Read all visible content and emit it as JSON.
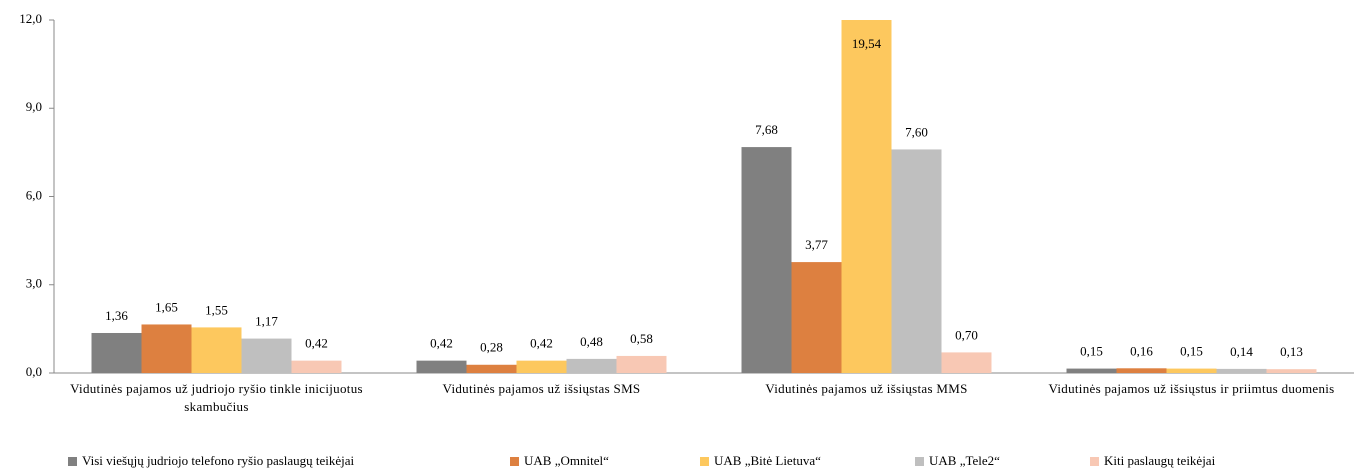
{
  "chart_data": {
    "type": "bar",
    "categories": [
      "Vidutinės pajamos už judriojo ryšio tinkle inicijuotus skambučius",
      "Vidutinės pajamos už išsiųstas SMS",
      "Vidutinės pajamos už išsiųstas MMS",
      "Vidutinės pajamos už išsiųstus ir priimtus duomenis"
    ],
    "series": [
      {
        "name": "Visi viešųjų judriojo telefono ryšio paslaugų teikėjai",
        "color": "#808080",
        "values": [
          1.36,
          0.42,
          7.68,
          0.15
        ],
        "value_labels": [
          "1,36",
          "0,42",
          "7,68",
          "0,15"
        ]
      },
      {
        "name": "UAB „Omnitel“",
        "color": "#dd8040",
        "values": [
          1.65,
          0.28,
          3.77,
          0.16
        ],
        "value_labels": [
          "1,65",
          "0,28",
          "3,77",
          "0,16"
        ]
      },
      {
        "name": "UAB „Bitė Lietuva“",
        "color": "#fdc85e",
        "values": [
          1.55,
          0.42,
          19.54,
          0.15
        ],
        "value_labels": [
          "1,55",
          "0,42",
          "19,54",
          "0,15"
        ]
      },
      {
        "name": "UAB „Tele2“",
        "color": "#bfbfbf",
        "values": [
          1.17,
          0.48,
          7.6,
          0.14
        ],
        "value_labels": [
          "1,17",
          "0,48",
          "7,60",
          "0,14"
        ]
      },
      {
        "name": "Kiti paslaugų teikėjai",
        "color": "#f8c8b4",
        "values": [
          0.42,
          0.58,
          0.7,
          0.13
        ],
        "value_labels": [
          "0,42",
          "0,58",
          "0,70",
          "0,13"
        ]
      }
    ],
    "ylim": [
      0,
      12
    ],
    "yticks": [
      {
        "value": 0,
        "label": "0,0"
      },
      {
        "value": 3,
        "label": "3,0"
      },
      {
        "value": 6,
        "label": "6,0"
      },
      {
        "value": 9,
        "label": "9,0"
      },
      {
        "value": 12,
        "label": "12,0"
      }
    ],
    "grid": false,
    "legend": "bottom"
  }
}
